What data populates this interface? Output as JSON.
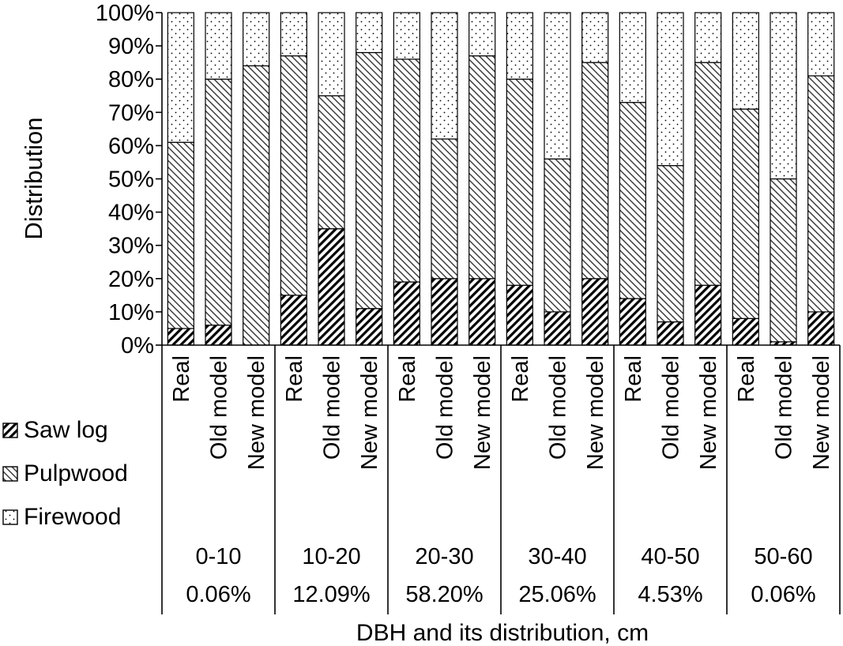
{
  "chart_data": {
    "type": "bar",
    "stacked": true,
    "ylabel": "Distribution",
    "xlabel": "DBH and its distribution, cm",
    "ylim": [
      0,
      100
    ],
    "y_ticks": [
      "0%",
      "10%",
      "20%",
      "30%",
      "40%",
      "50%",
      "60%",
      "70%",
      "80%",
      "90%",
      "100%"
    ],
    "legend_position": "left",
    "groups": [
      {
        "range": "0-10",
        "share": "0.06%"
      },
      {
        "range": "10-20",
        "share": "12.09%"
      },
      {
        "range": "20-30",
        "share": "58.20%"
      },
      {
        "range": "30-40",
        "share": "25.06%"
      },
      {
        "range": "40-50",
        "share": "4.53%"
      },
      {
        "range": "50-60",
        "share": "0.06%"
      }
    ],
    "bar_labels": [
      "Real",
      "Old model",
      "New model"
    ],
    "series": [
      {
        "name": "Saw log",
        "pattern": "dense-diagonal-hatch",
        "values": [
          [
            5,
            6,
            0
          ],
          [
            15,
            35,
            11
          ],
          [
            19,
            20,
            20
          ],
          [
            18,
            10,
            20
          ],
          [
            14,
            7,
            18
          ],
          [
            8,
            1,
            10
          ]
        ]
      },
      {
        "name": "Pulpwood",
        "pattern": "light-diagonal-hatch",
        "values": [
          [
            56,
            74,
            84
          ],
          [
            72,
            40,
            77
          ],
          [
            67,
            42,
            67
          ],
          [
            62,
            46,
            65
          ],
          [
            59,
            47,
            67
          ],
          [
            63,
            49,
            71
          ]
        ]
      },
      {
        "name": "Firewood",
        "pattern": "dots",
        "values": [
          [
            39,
            20,
            16
          ],
          [
            13,
            25,
            12
          ],
          [
            14,
            38,
            13
          ],
          [
            20,
            44,
            15
          ],
          [
            27,
            46,
            15
          ],
          [
            29,
            50,
            19
          ]
        ]
      }
    ]
  }
}
